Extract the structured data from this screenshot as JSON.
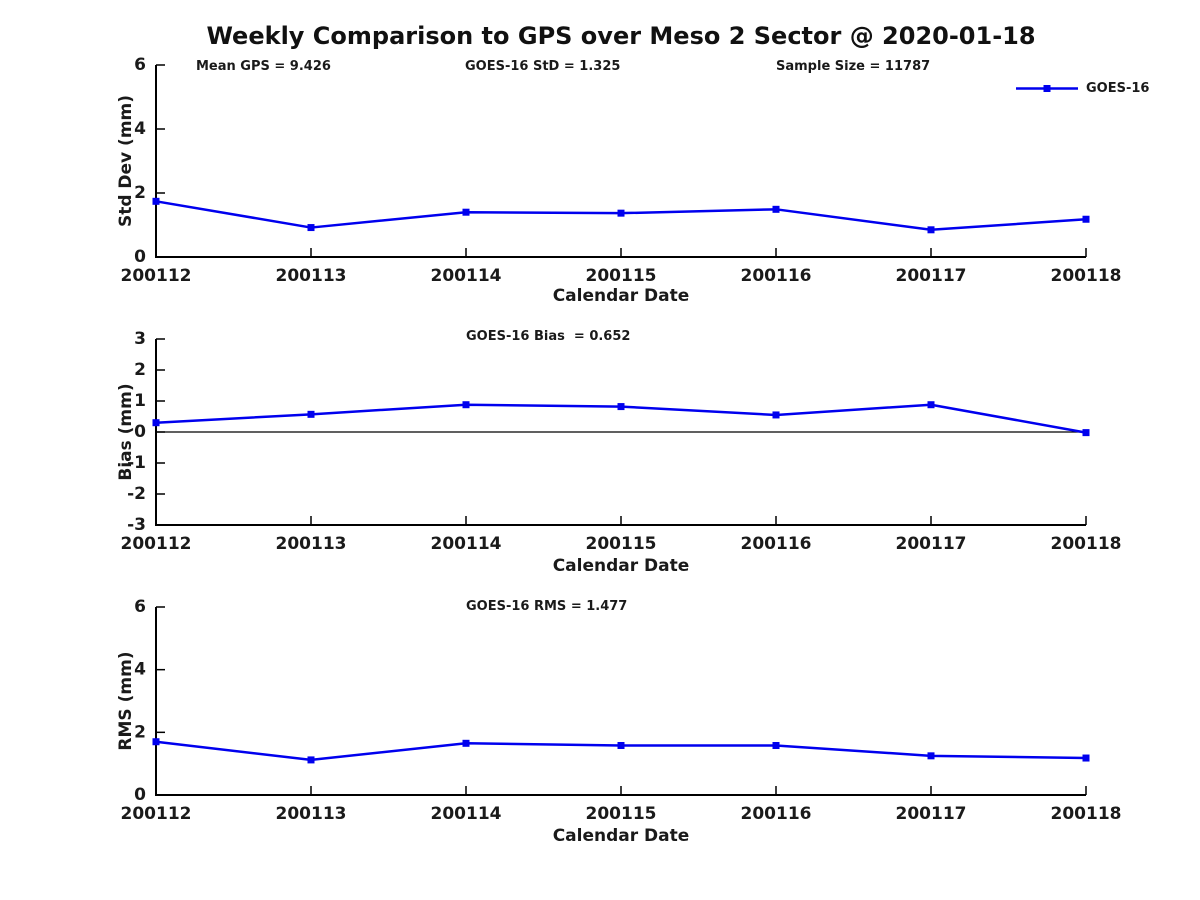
{
  "title": "Weekly Comparison to GPS over Meso 2 Sector @ 2020-01-18",
  "header_annotations": {
    "mean_gps": "Mean GPS = 9.426",
    "goes16_std": "GOES-16 StD = 1.325",
    "sample_size": "Sample Size = 11787"
  },
  "legend": {
    "label": "GOES-16",
    "marker": "filled-square",
    "position": "top-right"
  },
  "colors": {
    "series_line": "#0000EE",
    "axis": "#000000",
    "text": "#1a1a1a",
    "background": "#ffffff"
  },
  "chart_data": [
    {
      "type": "line",
      "title": "",
      "categories": [
        "200112",
        "200113",
        "200114",
        "200115",
        "200116",
        "200117",
        "200118"
      ],
      "series": [
        {
          "name": "GOES-16",
          "values": [
            1.74,
            0.92,
            1.4,
            1.37,
            1.49,
            0.85,
            1.18
          ]
        }
      ],
      "xlabel": "Calendar Date",
      "ylabel": "Std Dev (mm)",
      "ylim": [
        0,
        6
      ],
      "yticks": [
        0,
        2,
        4,
        6
      ],
      "grid": false,
      "zero_line": false,
      "legend_position": "top-right"
    },
    {
      "type": "line",
      "title": "GOES-16 Bias  = 0.652",
      "categories": [
        "200112",
        "200113",
        "200114",
        "200115",
        "200116",
        "200117",
        "200118"
      ],
      "series": [
        {
          "name": "GOES-16",
          "values": [
            0.3,
            0.57,
            0.88,
            0.82,
            0.55,
            0.88,
            -0.02
          ]
        }
      ],
      "xlabel": "Calendar Date",
      "ylabel": "Bias (mm)",
      "ylim": [
        -3,
        3
      ],
      "yticks": [
        3,
        2,
        1,
        0,
        -1,
        -2,
        -3
      ],
      "grid": false,
      "zero_line": true,
      "legend_position": "none"
    },
    {
      "type": "line",
      "title": "GOES-16 RMS = 1.477",
      "categories": [
        "200112",
        "200113",
        "200114",
        "200115",
        "200116",
        "200117",
        "200118"
      ],
      "series": [
        {
          "name": "GOES-16",
          "values": [
            1.7,
            1.12,
            1.65,
            1.58,
            1.58,
            1.25,
            1.18
          ]
        }
      ],
      "xlabel": "Calendar Date",
      "ylabel": "RMS (mm)",
      "ylim": [
        0,
        6
      ],
      "yticks": [
        0,
        2,
        4,
        6
      ],
      "grid": false,
      "zero_line": false,
      "legend_position": "none"
    }
  ]
}
